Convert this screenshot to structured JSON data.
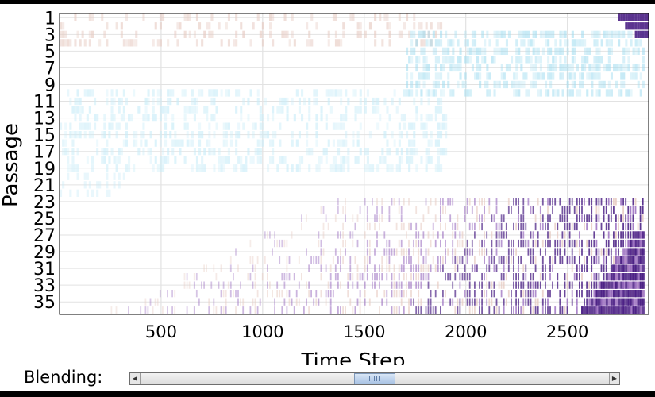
{
  "chart_data": {
    "type": "heatmap",
    "title": "",
    "xlabel": "Time Step",
    "ylabel": "Passage",
    "xlim": [
      0,
      2900
    ],
    "ylim": [
      1,
      36
    ],
    "x_ticks": [
      500,
      1000,
      1500,
      2000,
      2500
    ],
    "y_ticks": [
      1,
      3,
      5,
      7,
      9,
      11,
      13,
      15,
      17,
      19,
      21,
      23,
      25,
      27,
      29,
      31,
      33,
      35
    ],
    "grid": true,
    "colors": {
      "positive_high": "#4a1f84",
      "positive_mid": "#9b6fc0",
      "positive_low": "#e6c9c0",
      "negative_low": "#c8ecf8",
      "negative_high": "#9fdcf0",
      "background": "#ffffff"
    },
    "regions": [
      {
        "kind": "positive",
        "passages": [
          1,
          3
        ],
        "x": [
          2720,
          2900
        ],
        "intensity": "high"
      },
      {
        "kind": "negative",
        "passages": [
          3,
          10
        ],
        "x": [
          1700,
          2880
        ],
        "intensity": "medium"
      },
      {
        "kind": "negative",
        "passages": [
          10,
          19
        ],
        "x": [
          0,
          1900
        ],
        "intensity": "low"
      },
      {
        "kind": "positive",
        "passages": [
          23,
          36
        ],
        "x": [
          300,
          2880
        ],
        "intensity": "rising with time"
      },
      {
        "kind": "positive",
        "passages": [
          27,
          36
        ],
        "x": [
          2450,
          2880
        ],
        "intensity": "high"
      }
    ]
  },
  "blending": {
    "label": "Blending:",
    "value": 0.5,
    "left_arrow": "◀",
    "right_arrow": "▶"
  }
}
